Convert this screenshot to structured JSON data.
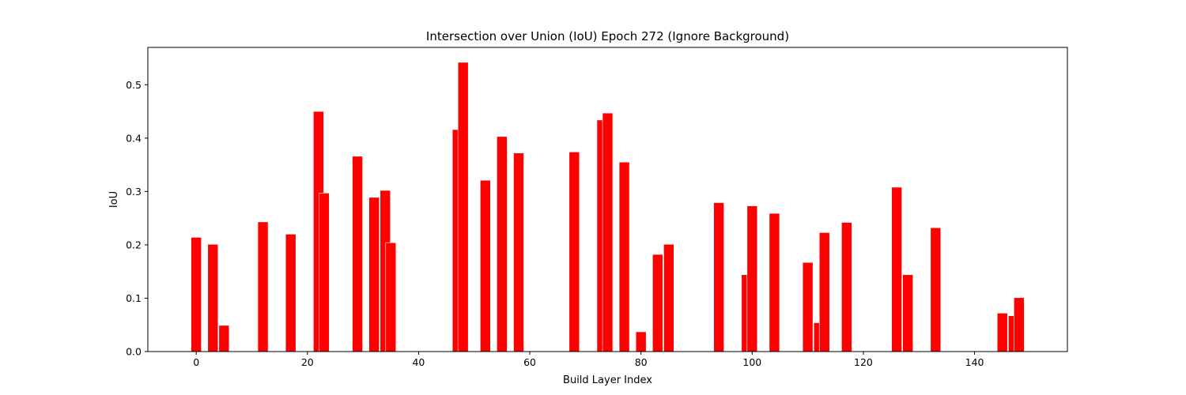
{
  "chart_data": {
    "type": "bar",
    "title": "Intersection over Union (IoU) Epoch 272 (Ignore Background)",
    "xlabel": "Build Layer Index",
    "ylabel": "IoU",
    "xlim": [
      -8.7,
      156.7
    ],
    "ylim": [
      0,
      0.57
    ],
    "xticks": [
      0,
      20,
      40,
      60,
      80,
      100,
      120,
      140
    ],
    "yticks": [
      0.0,
      0.1,
      0.2,
      0.3,
      0.4,
      0.5
    ],
    "ytick_labels": [
      "0.0",
      "0.1",
      "0.2",
      "0.3",
      "0.4",
      "0.5"
    ],
    "bar_width": 1.85,
    "bar_color": "#ff0000",
    "grid": false,
    "x": [
      0,
      3,
      5,
      12,
      17,
      22,
      23,
      29,
      32,
      34,
      35,
      47,
      48,
      52,
      55,
      58,
      68,
      73,
      74,
      77,
      80,
      83,
      85,
      94,
      99,
      100,
      104,
      110,
      112,
      113,
      117,
      126,
      128,
      133,
      145,
      147,
      148
    ],
    "values": [
      0.214,
      0.201,
      0.049,
      0.243,
      0.22,
      0.45,
      0.297,
      0.366,
      0.289,
      0.302,
      0.204,
      0.416,
      0.542,
      0.321,
      0.403,
      0.372,
      0.374,
      0.434,
      0.447,
      0.355,
      0.037,
      0.182,
      0.201,
      0.279,
      0.144,
      0.273,
      0.259,
      0.167,
      0.054,
      0.223,
      0.242,
      0.308,
      0.144,
      0.232,
      0.072,
      0.067,
      0.101
    ]
  }
}
